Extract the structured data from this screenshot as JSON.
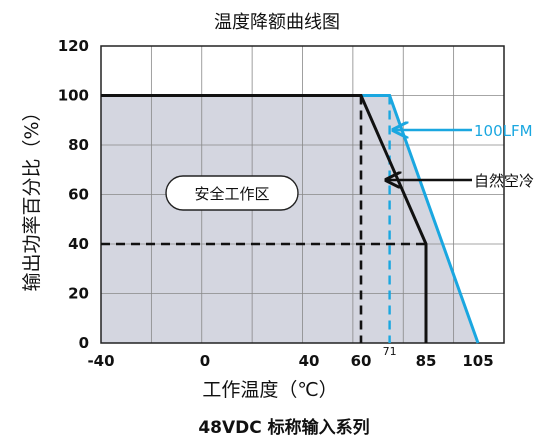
{
  "chart_data": {
    "type": "line",
    "title": "温度降额曲线图",
    "subtitle": "48VDC 标称输入系列",
    "xlabel": "工作温度（℃）",
    "ylabel": "输出功率百分比（%）",
    "xlim": [
      -40,
      115
    ],
    "ylim": [
      0,
      120
    ],
    "x_ticks": [
      -40,
      0,
      40,
      60,
      85,
      105
    ],
    "y_ticks": [
      0,
      20,
      40,
      60,
      80,
      100,
      120
    ],
    "grid": true,
    "series": [
      {
        "name": "100LFM",
        "color": "#1aa7e0",
        "points": [
          [
            -40,
            100
          ],
          [
            71,
            100
          ],
          [
            105,
            0
          ]
        ]
      },
      {
        "name": "自然空冷",
        "color": "#111111",
        "points": [
          [
            -40,
            100
          ],
          [
            60,
            100
          ],
          [
            85,
            40
          ],
          [
            85,
            0
          ]
        ]
      }
    ],
    "safe_area_label": "安全工作区",
    "safe_area_color": "#d4d6e0",
    "annotations": [
      {
        "text": "71",
        "x": 71
      }
    ],
    "guide_lines": {
      "dashed_vertical_x": [
        60,
        71
      ],
      "dashed_horizontal_y": 40
    }
  }
}
